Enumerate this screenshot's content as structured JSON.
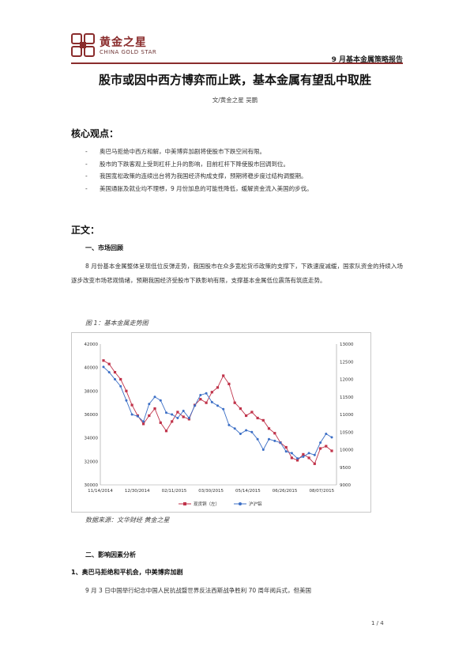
{
  "header": {
    "brand_cn": "黄金之星",
    "brand_en": "CHINA GOLD STAR",
    "report_type": "9 月基本金属策略报告",
    "brand_color": "#8a2c2c"
  },
  "title": "股市或因中西方博弈而止跌，基本金属有望乱中取胜",
  "author": "文/黄金之星 吴鹏",
  "core": {
    "heading": "核心观点：",
    "bullet_dash": "-",
    "points": [
      "奥巴马拒绝中西方和解，中美博弈加剧将使股市下跌空间有限。",
      "股市的下跌客观上受到杠杆上升的影响，目前杠杆下降使股市回调到位。",
      "我国宽松政策的连续出台将为我国经济构成支撑，预期将稳步度过结构调整期。",
      "美国通胀及就业均不理想，9 月份加息的可能性降低，缓解资金流入美国的步伐。"
    ]
  },
  "body": {
    "heading": "正文：",
    "section1": {
      "title": "一、市场回顾",
      "para": "8 月份基本金属整体呈现低位反弹走势，我国股市在众多宽松货币政策的支撑下，下跌速度减缓，国家队资金的持续入场逐步改变市场悲观情绪，预期我国经济受股市下跌影响有限，支撑基本金属低位震荡有筑底走势。",
      "figure_caption": "图 1：基本金属走势图",
      "source": "数据来源：文华财经    黄金之星"
    },
    "section2": {
      "title": "二、影响因素分析",
      "sub1": "1、奥巴马拒绝和平机会，中美博弈加剧",
      "para": "9 月 3 日中国举行纪念中国人民抗战暨世界反法西斯战争胜利 70 周年阅兵式，但美国"
    }
  },
  "page": "1 / 4",
  "chart_data": {
    "type": "line",
    "x_ticks": [
      "11/14/2014",
      "12/30/2014",
      "02/11/2015",
      "03/30/2015",
      "05/14/2015",
      "06/26/2015",
      "08/07/2015"
    ],
    "y_left": {
      "ticks": [
        "42000",
        "40000",
        "38000",
        "36000",
        "34000",
        "32000",
        "30000"
      ],
      "range": [
        30000,
        42000
      ]
    },
    "y_right": {
      "ticks": [
        "13000",
        "12500",
        "12000",
        "11500",
        "11000",
        "10500",
        "10000",
        "9500",
        "9000"
      ],
      "range": [
        9000,
        13000
      ]
    },
    "series": [
      {
        "name": "现货铜（左）",
        "axis": "left",
        "color": "#c0334a",
        "values": [
          40600,
          40300,
          39600,
          39000,
          38000,
          36800,
          35900,
          35200,
          35900,
          36500,
          35300,
          34600,
          35400,
          36200,
          35800,
          35600,
          36800,
          37300,
          37000,
          37900,
          38300,
          39300,
          38600,
          37000,
          36500,
          35900,
          36200,
          35700,
          35500,
          34800,
          34400,
          33600,
          33200,
          32300,
          32100,
          32600,
          32300,
          31800,
          33100,
          33300,
          32900
        ]
      },
      {
        "name": "沪沪铝",
        "axis": "right",
        "color": "#3c6fc6",
        "values": [
          12350,
          12200,
          12000,
          11800,
          11400,
          11000,
          10950,
          10800,
          11300,
          11500,
          11400,
          11050,
          11000,
          10900,
          11100,
          10900,
          11250,
          11550,
          11600,
          11350,
          11250,
          11150,
          10700,
          10600,
          10450,
          10550,
          10500,
          10300,
          10000,
          10300,
          10250,
          10200,
          9950,
          9900,
          9750,
          9800,
          9900,
          9850,
          10200,
          10450,
          10350
        ]
      }
    ],
    "legend_position": "bottom",
    "grid": false
  }
}
